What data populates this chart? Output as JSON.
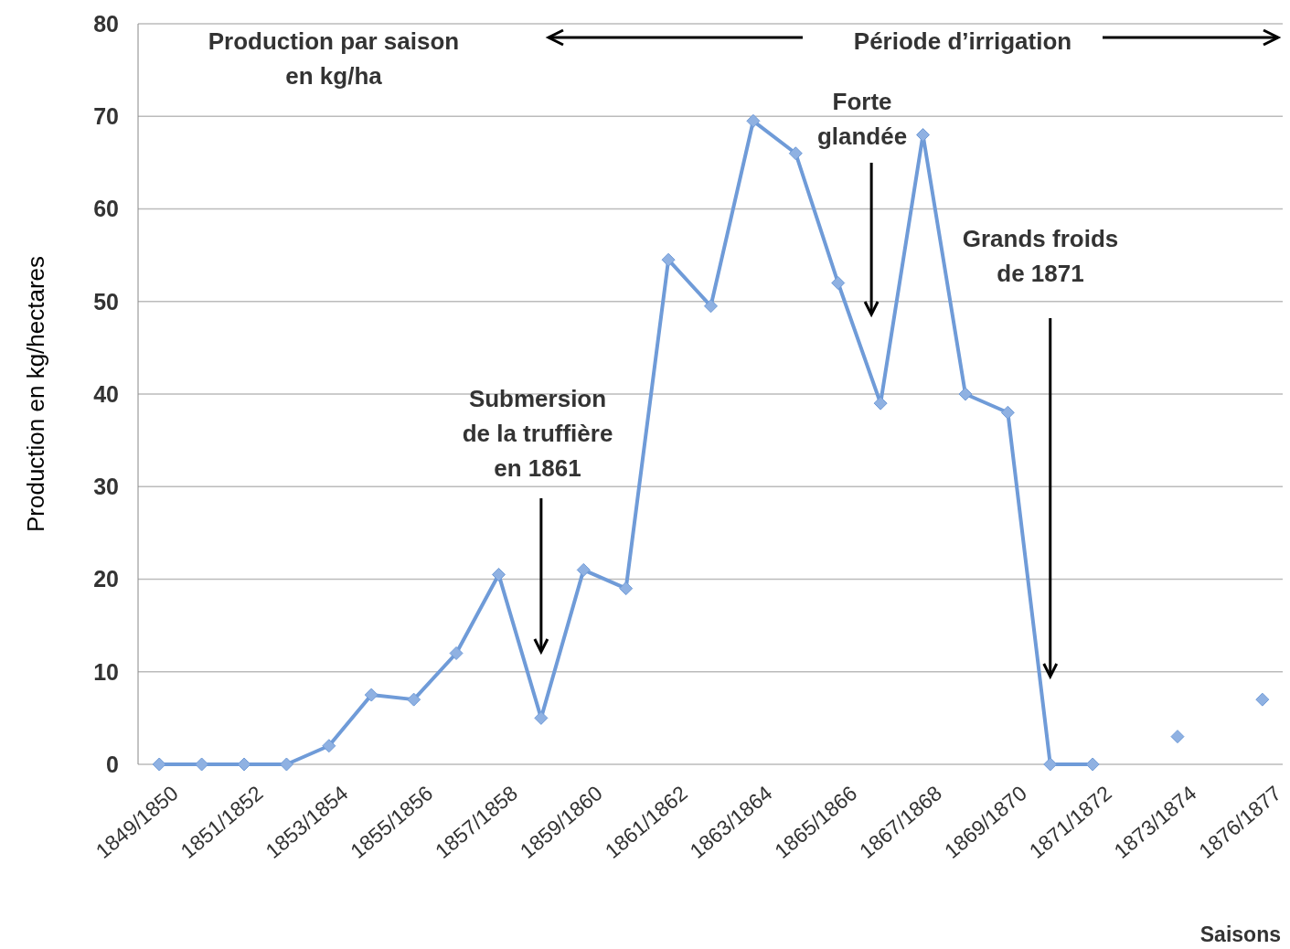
{
  "chart_data": {
    "type": "line",
    "xlabel": "Saisons",
    "ylabel": "Production en kg/hectares",
    "categories": [
      "1849/1850",
      null,
      "1851/1852",
      null,
      "1853/1854",
      null,
      "1855/1856",
      null,
      "1857/1858",
      null,
      "1859/1860",
      null,
      "1861/1862",
      null,
      "1863/1864",
      null,
      "1865/1866",
      null,
      "1867/1868",
      null,
      "1869/1870",
      null,
      "1871/1872",
      null,
      "1873/1874",
      null,
      "1876/1877"
    ],
    "series": [
      {
        "color": "#6f9bd8",
        "values": [
          0,
          0,
          0,
          0,
          2,
          7.5,
          7,
          12,
          20.5,
          5,
          21,
          19,
          54.5,
          49.5,
          69.5,
          66,
          52,
          39,
          68,
          40,
          38,
          0,
          0,
          null,
          3,
          null,
          7
        ]
      }
    ],
    "ylim": [
      0,
      80
    ],
    "yticks": [
      0,
      10,
      20,
      30,
      40,
      50,
      60,
      70,
      80
    ],
    "grid": "y",
    "marker": "diamond",
    "line_style": "solid",
    "annotations": [
      "Production par saison en kg/ha",
      "Période d’irrigation",
      "Submersion de la truffière en 1861",
      "Forte glandée",
      "Grands froids de 1871"
    ]
  }
}
